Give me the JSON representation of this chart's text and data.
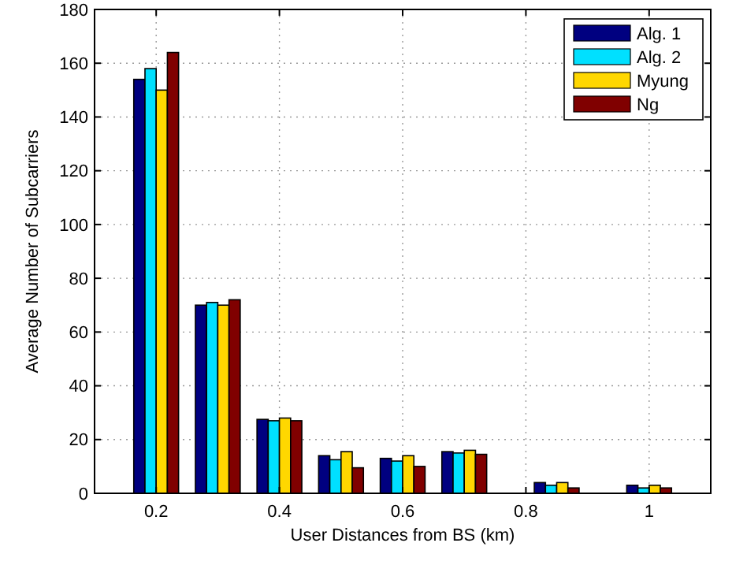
{
  "chart_data": {
    "type": "bar",
    "xlabel": "User Distances from BS (km)",
    "ylabel": "Average Number of Subcarriers",
    "x": [
      0.2,
      0.3,
      0.4,
      0.5,
      0.6,
      0.7,
      0.85,
      1.0
    ],
    "series": [
      {
        "name": "Alg. 1",
        "color": "#000080",
        "values": [
          154,
          70,
          27.5,
          14,
          13,
          15.5,
          4,
          3
        ]
      },
      {
        "name": "Alg. 2",
        "color": "#00e0ff",
        "values": [
          158,
          71,
          27,
          12.5,
          12,
          15,
          3,
          2
        ]
      },
      {
        "name": "Myung",
        "color": "#ffd700",
        "values": [
          150,
          70,
          28,
          15.5,
          14,
          16,
          4,
          3
        ]
      },
      {
        "name": "Ng",
        "color": "#800000",
        "values": [
          164,
          72,
          27,
          9.5,
          10,
          14.5,
          2,
          2
        ]
      }
    ],
    "xlim": [
      0.1,
      1.1
    ],
    "xticks": [
      0.2,
      0.4,
      0.6,
      0.8,
      1
    ],
    "ylim": [
      0,
      180
    ],
    "yticks": [
      0,
      20,
      40,
      60,
      80,
      100,
      120,
      140,
      160,
      180
    ],
    "grid": true,
    "legend": "top right"
  }
}
